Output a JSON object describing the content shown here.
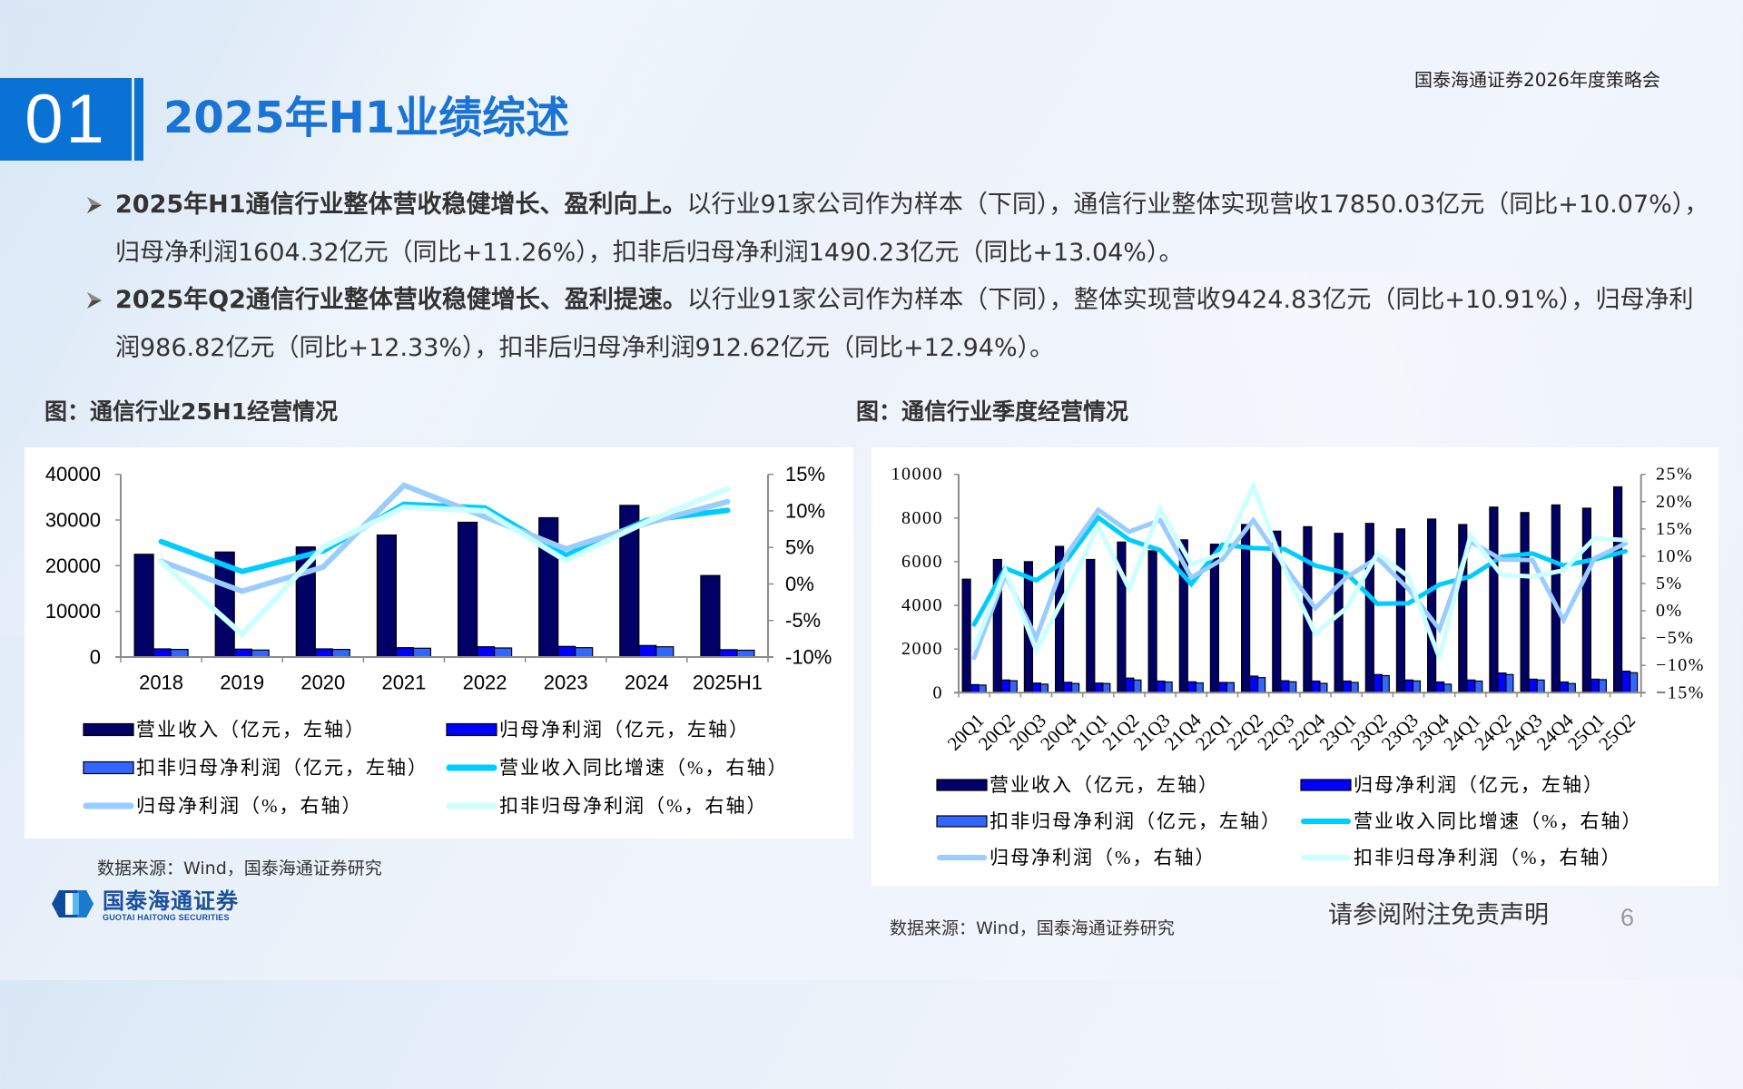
{
  "header": {
    "section_number": "01",
    "title": "2025年H1业绩综述",
    "event": "国泰海通证券2026年度策略会"
  },
  "icons": {
    "bullet": "arrow-bullet-icon",
    "logo": "hexagon-logo-icon"
  },
  "colors": {
    "accent": "#0a72d4",
    "title": "#1b74d3",
    "body_text": "#333333",
    "page_number": "#999999"
  },
  "bullets": [
    {
      "lead": "2025年H1通信行业整体营收稳健增长、盈利向上。",
      "text": "以行业91家公司作为样本（下同），通信行业整体实现营收17850.03亿元（同比+10.07%），归母净利润1604.32亿元（同比+11.26%），扣非后归母净利润1490.23亿元（同比+13.04%）。"
    },
    {
      "lead": "2025年Q2通信行业整体营收稳健增长、盈利提速。",
      "text": "以行业91家公司作为样本（下同），整体实现营收9424.83亿元（同比+10.91%），归母净利润986.82亿元（同比+12.33%），扣非后归母净利润912.62亿元（同比+12.94%）。"
    }
  ],
  "figures": [
    {
      "caption": "图：通信行业25H1经营情况",
      "source": "数据来源：Wind，国泰海通证券研究"
    },
    {
      "caption": "图：通信行业季度经营情况",
      "source": "数据来源：Wind，国泰海通证券研究"
    }
  ],
  "footer": {
    "logo_cn": "国泰海通证券",
    "logo_en": "GUOTAI HAITONG SECURITIES",
    "disclaimer": "请参阅附注免责声明",
    "page": "6"
  },
  "chart_data": [
    {
      "type": "bar",
      "combo": "bar+line",
      "title": "图：通信行业25H1经营情况",
      "xlabel": "",
      "ylabel": "",
      "categories": [
        "2018",
        "2019",
        "2020",
        "2021",
        "2022",
        "2023",
        "2024",
        "2025H1"
      ],
      "ylim_left": [
        0,
        40000
      ],
      "ylim_right": [
        -10,
        15
      ],
      "yticks_left": [
        "0",
        "10000",
        "20000",
        "30000",
        "40000"
      ],
      "yticks_right": [
        "-10%",
        "-5%",
        "0%",
        "5%",
        "10%",
        "15%"
      ],
      "grid": false,
      "legend_position": "bottom",
      "series": [
        {
          "name": "营业收入（亿元，左轴）",
          "chart_type": "bar",
          "axis": "left",
          "color": "#000066",
          "values": [
            22500,
            23000,
            24100,
            26700,
            29500,
            30500,
            33200,
            17850.03
          ]
        },
        {
          "name": "归母净利润（亿元，左轴）",
          "chart_type": "bar",
          "axis": "left",
          "color": "#0000ff",
          "values": [
            1790,
            1720,
            1790,
            2050,
            2250,
            2320,
            2520,
            1604.32
          ]
        },
        {
          "name": "扣非归母净利润（亿元，左轴）",
          "chart_type": "bar",
          "axis": "left",
          "color": "#3366ff",
          "values": [
            1660,
            1530,
            1660,
            1930,
            1990,
            2050,
            2250,
            1490.23
          ]
        },
        {
          "name": "营业收入同比增速（%，右轴）",
          "chart_type": "line",
          "axis": "right",
          "color": "#00ccff",
          "values": [
            5.8,
            1.7,
            4.5,
            10.9,
            10.4,
            3.9,
            8.7,
            10.07
          ]
        },
        {
          "name": "归母净利润（%，右轴）",
          "chart_type": "line",
          "axis": "right",
          "color": "#99ccff",
          "values": [
            3.1,
            -1.0,
            2.3,
            13.5,
            9.2,
            4.8,
            8.3,
            11.26
          ]
        },
        {
          "name": "扣非归母净利润（%，右轴）",
          "chart_type": "line",
          "axis": "right",
          "color": "#ccffff",
          "values": [
            3.0,
            -6.9,
            5.0,
            10.5,
            10.0,
            3.2,
            8.5,
            13.04
          ]
        }
      ]
    },
    {
      "type": "bar",
      "combo": "bar+line",
      "title": "图：通信行业季度经营情况",
      "xlabel": "",
      "ylabel": "",
      "categories": [
        "20Q1",
        "20Q2",
        "20Q3",
        "20Q4",
        "21Q1",
        "21Q2",
        "21Q3",
        "21Q4",
        "22Q1",
        "22Q2",
        "22Q3",
        "22Q4",
        "23Q1",
        "23Q2",
        "23Q3",
        "23Q4",
        "24Q1",
        "24Q2",
        "24Q3",
        "24Q4",
        "25Q1",
        "25Q2"
      ],
      "ylim_left": [
        0,
        10000
      ],
      "ylim_right": [
        -15,
        25
      ],
      "yticks_left": [
        "0",
        "2000",
        "4000",
        "6000",
        "8000",
        "10000"
      ],
      "yticks_right": [
        "−15%",
        "−10%",
        "−5%",
        "0%",
        "5%",
        "10%",
        "15%",
        "20%",
        "25%"
      ],
      "grid": false,
      "legend_position": "bottom",
      "series": [
        {
          "name": "营业收入（亿元，左轴）",
          "chart_type": "bar",
          "axis": "left",
          "color": "#000066",
          "values": [
            5200,
            6100,
            6000,
            6700,
            6100,
            6900,
            6500,
            7000,
            6800,
            7700,
            7400,
            7600,
            7300,
            7750,
            7500,
            7950,
            7700,
            8500,
            8250,
            8600,
            8450,
            9424.83
          ]
        },
        {
          "name": "归母净利润（亿元，左轴）",
          "chart_type": "bar",
          "axis": "left",
          "color": "#0000ff",
          "values": [
            370,
            580,
            440,
            480,
            440,
            670,
            530,
            500,
            470,
            760,
            550,
            530,
            530,
            830,
            580,
            490,
            580,
            900,
            620,
            490,
            620,
            986.82
          ]
        },
        {
          "name": "扣非归母净利润（亿元，左轴）",
          "chart_type": "bar",
          "axis": "left",
          "color": "#3366ff",
          "values": [
            350,
            550,
            390,
            420,
            420,
            580,
            490,
            450,
            460,
            690,
            500,
            430,
            470,
            780,
            540,
            390,
            530,
            830,
            580,
            420,
            600,
            912.62
          ]
        },
        {
          "name": "营业收入同比增速（%，右轴）",
          "chart_type": "line",
          "axis": "right",
          "color": "#00ccff",
          "values": [
            -2.5,
            7.8,
            5.6,
            9.4,
            17.1,
            13.0,
            11.1,
            4.9,
            12.1,
            11.5,
            11.3,
            8.3,
            6.9,
            1.3,
            1.4,
            4.8,
            6.3,
            9.9,
            10.5,
            8.3,
            9.4,
            10.91
          ]
        },
        {
          "name": "归母净利润（%，右轴）",
          "chart_type": "line",
          "axis": "right",
          "color": "#99ccff",
          "values": [
            -8.6,
            6.6,
            -5.0,
            10.5,
            18.5,
            14.5,
            16.6,
            6.1,
            9.4,
            16.6,
            8.3,
            0.5,
            6.1,
            9.7,
            4.0,
            -3.4,
            12.7,
            9.4,
            9.3,
            -1.7,
            9.6,
            12.33
          ]
        },
        {
          "name": "扣非归母净利润（%，右轴）",
          "chart_type": "line",
          "axis": "right",
          "color": "#ccffff",
          "values": [
            -6.7,
            7.4,
            -7.2,
            3.6,
            15.5,
            4.0,
            18.7,
            8.5,
            10.5,
            22.9,
            7.7,
            -4.2,
            0.5,
            10.5,
            6.3,
            -8.6,
            13.8,
            6.6,
            6.3,
            7.4,
            13.3,
            12.94
          ]
        }
      ]
    }
  ]
}
